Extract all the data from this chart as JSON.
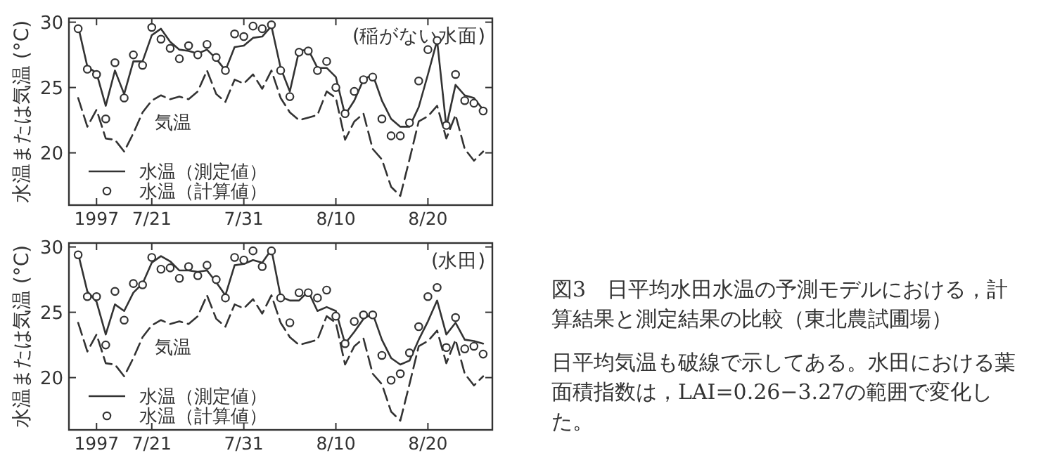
{
  "chart_data": [
    {
      "type": "line",
      "title": "(稲がない水面)",
      "ylabel": "水温または気温 (°C)",
      "ylim": [
        16,
        30.3
      ],
      "yticks": [
        20,
        25,
        30
      ],
      "xlim": [
        "1997-07-12",
        "1997-08-27"
      ],
      "xticks": [
        {
          "value": "1997-07-15",
          "label": "1997"
        },
        {
          "value": "1997-07-21",
          "label": "7/21"
        },
        {
          "value": "1997-07-31",
          "label": "7/31"
        },
        {
          "value": "1997-08-10",
          "label": "8/10"
        },
        {
          "value": "1997-08-20",
          "label": "8/20"
        }
      ],
      "x": [
        "1997-07-13",
        "1997-07-14",
        "1997-07-15",
        "1997-07-16",
        "1997-07-17",
        "1997-07-18",
        "1997-07-19",
        "1997-07-20",
        "1997-07-21",
        "1997-07-22",
        "1997-07-23",
        "1997-07-24",
        "1997-07-25",
        "1997-07-26",
        "1997-07-27",
        "1997-07-28",
        "1997-07-29",
        "1997-07-30",
        "1997-07-31",
        "1997-08-01",
        "1997-08-02",
        "1997-08-03",
        "1997-08-04",
        "1997-08-05",
        "1997-08-06",
        "1997-08-07",
        "1997-08-08",
        "1997-08-09",
        "1997-08-10",
        "1997-08-11",
        "1997-08-12",
        "1997-08-13",
        "1997-08-14",
        "1997-08-15",
        "1997-08-16",
        "1997-08-17",
        "1997-08-18",
        "1997-08-19",
        "1997-08-20",
        "1997-08-21",
        "1997-08-22",
        "1997-08-23",
        "1997-08-24",
        "1997-08-25",
        "1997-08-26"
      ],
      "legend": "bottom left",
      "grid": false,
      "series": [
        {
          "name": "水温（測定値）",
          "type": "line",
          "line_style": "solid",
          "marker": "none",
          "color": "#333333",
          "values": [
            29.7,
            26.6,
            26.1,
            23.6,
            26.3,
            24.5,
            27.0,
            27.0,
            29.0,
            29.5,
            28.5,
            27.9,
            27.8,
            27.6,
            27.9,
            27.2,
            26.3,
            28.1,
            28.2,
            28.8,
            28.9,
            29.7,
            26.5,
            24.7,
            27.8,
            27.9,
            26.5,
            26.5,
            25.8,
            22.9,
            24.0,
            25.6,
            26.0,
            24.0,
            22.6,
            22.0,
            22.0,
            23.5,
            26.0,
            28.6,
            22.0,
            25.2,
            24.4,
            24.2,
            23.3
          ]
        },
        {
          "name": "水温（計算値）",
          "type": "scatter",
          "marker": "circle",
          "color": "#333333",
          "values": [
            29.5,
            26.4,
            26.0,
            22.6,
            26.9,
            24.2,
            27.5,
            26.7,
            29.6,
            28.7,
            28.0,
            27.2,
            28.2,
            27.5,
            28.3,
            27.3,
            26.3,
            29.1,
            28.9,
            29.7,
            29.5,
            29.8,
            26.3,
            24.3,
            27.7,
            27.8,
            26.3,
            27.0,
            25.0,
            23.0,
            24.7,
            25.6,
            25.8,
            22.6,
            21.3,
            21.3,
            22.3,
            25.5,
            27.9,
            28.6,
            22.1,
            26.0,
            24.0,
            23.8,
            23.2
          ]
        },
        {
          "name": "気温",
          "type": "line",
          "line_style": "dashed",
          "marker": "none",
          "color": "#333333",
          "values": [
            24.2,
            22.0,
            23.3,
            21.1,
            21.0,
            20.1,
            21.5,
            23.1,
            24.0,
            24.4,
            24.1,
            24.3,
            24.1,
            24.7,
            26.3,
            24.5,
            23.9,
            25.6,
            25.3,
            26.0,
            24.9,
            26.3,
            24.2,
            23.1,
            22.5,
            22.7,
            22.9,
            24.7,
            24.2,
            21.0,
            22.4,
            23.0,
            20.3,
            19.5,
            17.4,
            16.7,
            19.5,
            22.4,
            22.8,
            23.6,
            21.1,
            22.9,
            20.3,
            19.4,
            20.1
          ]
        }
      ]
    },
    {
      "type": "line",
      "title": "(水田)",
      "ylabel": "水温または気温 (°C)",
      "ylim": [
        16,
        30.3
      ],
      "yticks": [
        20,
        25,
        30
      ],
      "xlim": [
        "1997-07-12",
        "1997-08-27"
      ],
      "xticks": [
        {
          "value": "1997-07-15",
          "label": "1997"
        },
        {
          "value": "1997-07-21",
          "label": "7/21"
        },
        {
          "value": "1997-07-31",
          "label": "7/31"
        },
        {
          "value": "1997-08-10",
          "label": "8/10"
        },
        {
          "value": "1997-08-20",
          "label": "8/20"
        }
      ],
      "x": [
        "1997-07-13",
        "1997-07-14",
        "1997-07-15",
        "1997-07-16",
        "1997-07-17",
        "1997-07-18",
        "1997-07-19",
        "1997-07-20",
        "1997-07-21",
        "1997-07-22",
        "1997-07-23",
        "1997-07-24",
        "1997-07-25",
        "1997-07-26",
        "1997-07-27",
        "1997-07-28",
        "1997-07-29",
        "1997-07-30",
        "1997-07-31",
        "1997-08-01",
        "1997-08-02",
        "1997-08-03",
        "1997-08-04",
        "1997-08-05",
        "1997-08-06",
        "1997-08-07",
        "1997-08-08",
        "1997-08-09",
        "1997-08-10",
        "1997-08-11",
        "1997-08-12",
        "1997-08-13",
        "1997-08-14",
        "1997-08-15",
        "1997-08-16",
        "1997-08-17",
        "1997-08-18",
        "1997-08-19",
        "1997-08-20",
        "1997-08-21",
        "1997-08-22",
        "1997-08-23",
        "1997-08-24",
        "1997-08-25",
        "1997-08-26"
      ],
      "legend": "bottom left",
      "grid": false,
      "series": [
        {
          "name": "水温（測定値）",
          "type": "line",
          "line_style": "solid",
          "marker": "none",
          "color": "#333333",
          "values": [
            29.5,
            26.6,
            25.8,
            23.3,
            25.6,
            25.1,
            26.5,
            27.2,
            28.8,
            29.3,
            28.9,
            28.2,
            28.2,
            28.1,
            28.2,
            27.3,
            26.3,
            28.6,
            28.7,
            29.0,
            28.8,
            29.8,
            26.2,
            25.9,
            25.9,
            26.6,
            25.1,
            25.4,
            25.1,
            22.6,
            23.5,
            24.5,
            24.9,
            22.9,
            21.5,
            21.0,
            21.3,
            22.9,
            24.3,
            25.9,
            23.3,
            24.2,
            22.9,
            22.8,
            22.6
          ]
        },
        {
          "name": "水温（計算値）",
          "type": "scatter",
          "marker": "circle",
          "color": "#333333",
          "values": [
            29.4,
            26.2,
            26.2,
            22.5,
            26.6,
            24.4,
            27.2,
            27.1,
            29.2,
            28.3,
            28.4,
            27.6,
            28.5,
            27.8,
            28.6,
            27.5,
            26.1,
            29.2,
            29.0,
            29.7,
            28.5,
            29.7,
            26.1,
            24.2,
            26.5,
            26.5,
            26.1,
            26.7,
            24.7,
            22.6,
            24.3,
            24.8,
            24.8,
            21.7,
            19.8,
            20.3,
            21.9,
            23.9,
            26.2,
            26.9,
            22.3,
            24.6,
            22.2,
            22.4,
            21.8
          ]
        },
        {
          "name": "気温",
          "type": "line",
          "line_style": "dashed",
          "marker": "none",
          "color": "#333333",
          "values": [
            24.2,
            22.0,
            23.3,
            21.1,
            21.0,
            20.1,
            21.5,
            23.1,
            24.0,
            24.4,
            24.1,
            24.3,
            24.1,
            24.7,
            26.3,
            24.5,
            23.9,
            25.6,
            25.3,
            26.0,
            24.9,
            26.3,
            24.2,
            23.1,
            22.5,
            22.7,
            22.9,
            24.7,
            24.2,
            21.0,
            22.4,
            23.0,
            20.3,
            19.5,
            17.4,
            16.7,
            19.5,
            22.4,
            22.8,
            23.6,
            21.1,
            22.9,
            20.3,
            19.4,
            20.1
          ]
        }
      ]
    },
    {
      "type": "other",
      "title": "図3　日平均水田水温の予測モデルにおける，計算結果と測定結果の比較（東北農試圃場）",
      "annotations": [
        "日平均気温も破線で示してある。水田における葉面積指数は，LAI=0.26−3.27の範囲で変化した。"
      ]
    }
  ]
}
